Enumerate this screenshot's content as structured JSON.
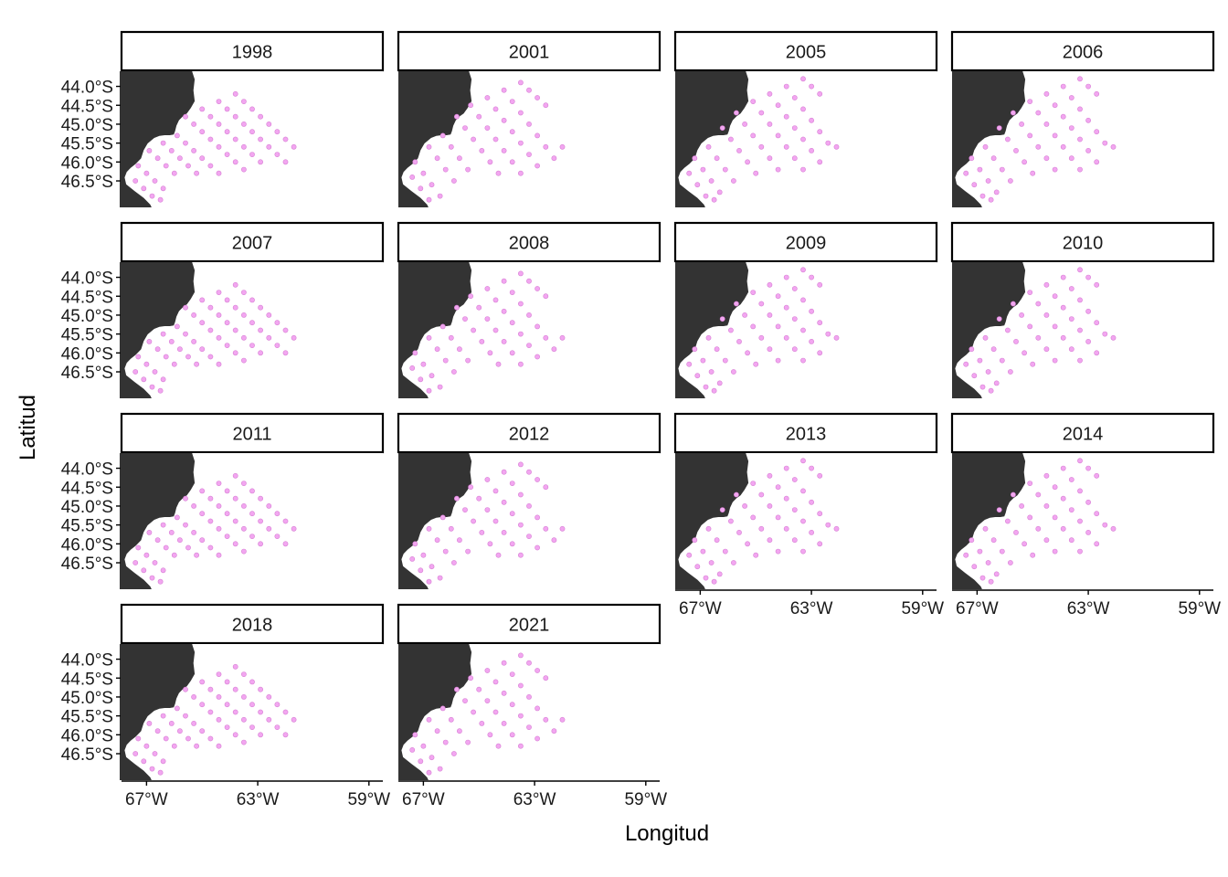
{
  "chart_data": {
    "type": "scatter",
    "facet_variable": "year",
    "xlabel": "Longitud",
    "ylabel": "Latitud",
    "x_ticks": [
      "67°W",
      "63°W",
      "59°W"
    ],
    "y_ticks": [
      "44.0°S",
      "44.5°S",
      "45.0°S",
      "45.5°S",
      "46.0°S",
      "46.5°S"
    ],
    "x_tick_values": [
      -67,
      -63,
      -59
    ],
    "y_tick_values": [
      -44.0,
      -44.5,
      -45.0,
      -45.5,
      -46.0,
      -46.5
    ],
    "xlim": [
      -67.9,
      -58.5
    ],
    "ylim": [
      -47.2,
      -43.6
    ],
    "land_color": "#333333",
    "point_color": "#f2a6f0",
    "point_stroke": "#d77fd4",
    "facets": [
      {
        "label": "1998",
        "variant": 0
      },
      {
        "label": "2001",
        "variant": 1
      },
      {
        "label": "2005",
        "variant": 2
      },
      {
        "label": "2006",
        "variant": 2
      },
      {
        "label": "2007",
        "variant": 0
      },
      {
        "label": "2008",
        "variant": 1
      },
      {
        "label": "2009",
        "variant": 2
      },
      {
        "label": "2010",
        "variant": 2
      },
      {
        "label": "2011",
        "variant": 0
      },
      {
        "label": "2012",
        "variant": 1
      },
      {
        "label": "2013",
        "variant": 2
      },
      {
        "label": "2014",
        "variant": 2
      },
      {
        "label": "2018",
        "variant": 0
      },
      {
        "label": "2021",
        "variant": 1
      }
    ],
    "station_sets": [
      [
        [
          -63.8,
          -44.2
        ],
        [
          -63.5,
          -44.4
        ],
        [
          -63.2,
          -44.6
        ],
        [
          -62.9,
          -44.8
        ],
        [
          -62.6,
          -45.0
        ],
        [
          -62.3,
          -45.2
        ],
        [
          -62.0,
          -45.4
        ],
        [
          -61.7,
          -45.6
        ],
        [
          -64.4,
          -44.4
        ],
        [
          -64.1,
          -44.6
        ],
        [
          -63.8,
          -44.8
        ],
        [
          -63.5,
          -45.0
        ],
        [
          -63.2,
          -45.2
        ],
        [
          -62.9,
          -45.4
        ],
        [
          -62.6,
          -45.6
        ],
        [
          -62.3,
          -45.8
        ],
        [
          -62.0,
          -46.0
        ],
        [
          -65.0,
          -44.6
        ],
        [
          -64.7,
          -44.8
        ],
        [
          -64.4,
          -45.0
        ],
        [
          -64.1,
          -45.2
        ],
        [
          -63.8,
          -45.4
        ],
        [
          -63.5,
          -45.6
        ],
        [
          -63.2,
          -45.8
        ],
        [
          -62.9,
          -46.0
        ],
        [
          -65.6,
          -44.8
        ],
        [
          -65.3,
          -45.0
        ],
        [
          -65.0,
          -45.2
        ],
        [
          -64.7,
          -45.4
        ],
        [
          -64.4,
          -45.6
        ],
        [
          -64.1,
          -45.8
        ],
        [
          -63.8,
          -46.0
        ],
        [
          -63.5,
          -46.2
        ],
        [
          -65.9,
          -45.3
        ],
        [
          -65.6,
          -45.5
        ],
        [
          -65.3,
          -45.7
        ],
        [
          -65.0,
          -45.9
        ],
        [
          -64.7,
          -46.1
        ],
        [
          -64.4,
          -46.3
        ],
        [
          -66.4,
          -45.5
        ],
        [
          -66.1,
          -45.7
        ],
        [
          -65.8,
          -45.9
        ],
        [
          -65.5,
          -46.1
        ],
        [
          -65.2,
          -46.3
        ],
        [
          -66.9,
          -45.7
        ],
        [
          -66.6,
          -45.9
        ],
        [
          -66.3,
          -46.1
        ],
        [
          -66.0,
          -46.3
        ],
        [
          -67.3,
          -46.1
        ],
        [
          -67.0,
          -46.3
        ],
        [
          -66.7,
          -46.5
        ],
        [
          -66.4,
          -46.7
        ],
        [
          -67.4,
          -46.5
        ],
        [
          -67.1,
          -46.7
        ],
        [
          -66.8,
          -46.9
        ],
        [
          -66.5,
          -47.0
        ]
      ],
      [
        [
          -63.5,
          -43.9
        ],
        [
          -63.2,
          -44.1
        ],
        [
          -62.9,
          -44.3
        ],
        [
          -62.6,
          -44.5
        ],
        [
          -64.1,
          -44.1
        ],
        [
          -63.8,
          -44.4
        ],
        [
          -63.5,
          -44.7
        ],
        [
          -63.2,
          -45.0
        ],
        [
          -62.9,
          -45.3
        ],
        [
          -62.6,
          -45.6
        ],
        [
          -62.3,
          -45.9
        ],
        [
          -62.0,
          -45.6
        ],
        [
          -64.7,
          -44.3
        ],
        [
          -64.4,
          -44.6
        ],
        [
          -64.1,
          -44.9
        ],
        [
          -63.8,
          -45.2
        ],
        [
          -63.5,
          -45.5
        ],
        [
          -63.2,
          -45.8
        ],
        [
          -62.9,
          -46.1
        ],
        [
          -65.3,
          -44.5
        ],
        [
          -65.0,
          -44.8
        ],
        [
          -64.7,
          -45.1
        ],
        [
          -64.4,
          -45.4
        ],
        [
          -64.1,
          -45.7
        ],
        [
          -63.8,
          -46.0
        ],
        [
          -63.5,
          -46.3
        ],
        [
          -65.8,
          -44.8
        ],
        [
          -65.5,
          -45.1
        ],
        [
          -65.2,
          -45.4
        ],
        [
          -64.9,
          -45.7
        ],
        [
          -64.6,
          -46.0
        ],
        [
          -64.3,
          -46.3
        ],
        [
          -66.3,
          -45.3
        ],
        [
          -66.0,
          -45.6
        ],
        [
          -65.7,
          -45.9
        ],
        [
          -65.4,
          -46.2
        ],
        [
          -66.8,
          -45.6
        ],
        [
          -66.5,
          -45.9
        ],
        [
          -66.2,
          -46.2
        ],
        [
          -65.9,
          -46.5
        ],
        [
          -67.3,
          -46.0
        ],
        [
          -67.0,
          -46.3
        ],
        [
          -66.7,
          -46.6
        ],
        [
          -66.4,
          -46.9
        ],
        [
          -67.4,
          -46.4
        ],
        [
          -67.1,
          -46.7
        ],
        [
          -66.8,
          -47.0
        ]
      ],
      [
        [
          -63.3,
          -43.8
        ],
        [
          -63.0,
          -44.0
        ],
        [
          -62.7,
          -44.2
        ],
        [
          -63.9,
          -44.0
        ],
        [
          -63.6,
          -44.3
        ],
        [
          -63.3,
          -44.6
        ],
        [
          -63.0,
          -44.9
        ],
        [
          -62.7,
          -45.2
        ],
        [
          -62.4,
          -45.5
        ],
        [
          -62.1,
          -45.6
        ],
        [
          -64.5,
          -44.2
        ],
        [
          -64.2,
          -44.5
        ],
        [
          -63.9,
          -44.8
        ],
        [
          -63.6,
          -45.1
        ],
        [
          -63.3,
          -45.4
        ],
        [
          -63.0,
          -45.7
        ],
        [
          -62.7,
          -46.0
        ],
        [
          -65.1,
          -44.4
        ],
        [
          -64.8,
          -44.7
        ],
        [
          -64.5,
          -45.0
        ],
        [
          -64.2,
          -45.3
        ],
        [
          -63.9,
          -45.6
        ],
        [
          -63.6,
          -45.9
        ],
        [
          -63.3,
          -46.2
        ],
        [
          -65.7,
          -44.7
        ],
        [
          -65.4,
          -45.0
        ],
        [
          -65.1,
          -45.3
        ],
        [
          -64.8,
          -45.6
        ],
        [
          -64.5,
          -45.9
        ],
        [
          -64.2,
          -46.2
        ],
        [
          -66.2,
          -45.1
        ],
        [
          -65.9,
          -45.4
        ],
        [
          -65.6,
          -45.7
        ],
        [
          -65.3,
          -46.0
        ],
        [
          -65.0,
          -46.3
        ],
        [
          -66.7,
          -45.6
        ],
        [
          -66.4,
          -45.9
        ],
        [
          -66.1,
          -46.2
        ],
        [
          -65.8,
          -46.5
        ],
        [
          -67.2,
          -45.9
        ],
        [
          -66.9,
          -46.2
        ],
        [
          -66.6,
          -46.5
        ],
        [
          -66.3,
          -46.8
        ],
        [
          -67.4,
          -46.3
        ],
        [
          -67.1,
          -46.6
        ],
        [
          -66.8,
          -46.9
        ],
        [
          -66.5,
          -47.0
        ]
      ]
    ]
  }
}
